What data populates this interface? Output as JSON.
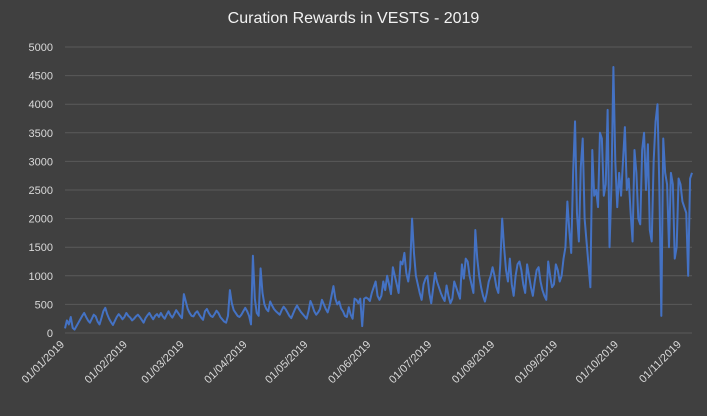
{
  "chart_data": {
    "type": "line",
    "title": "Curation Rewards in VESTS - 2019",
    "xlabel": "",
    "ylabel": "",
    "ylim": [
      0,
      5000
    ],
    "yticks": [
      "0",
      "500",
      "1000",
      "1500",
      "2000",
      "2500",
      "3000",
      "3500",
      "4000",
      "4500",
      "5000"
    ],
    "xticks": [
      "01/01/2019",
      "01/02/2019",
      "01/03/2019",
      "01/04/2019",
      "01/05/2019",
      "01/06/2019",
      "01/07/2019",
      "01/08/2019",
      "01/09/2019",
      "01/10/2019",
      "01/11/2019"
    ],
    "grid": true,
    "legend": "none",
    "line_color": "#4472c4",
    "x_start": "2019-01-01",
    "x_end": "2019-11-06",
    "series": [
      {
        "values": [
          80,
          220,
          150,
          280,
          90,
          60,
          120,
          180,
          240,
          300,
          350,
          280,
          220,
          180,
          250,
          320,
          290,
          200,
          150,
          260,
          380,
          440,
          330,
          250,
          190,
          140,
          210,
          280,
          330,
          290,
          240,
          280,
          350,
          300,
          270,
          220,
          250,
          290,
          320,
          280,
          230,
          180,
          260,
          310,
          350,
          290,
          240,
          300,
          330,
          280,
          350,
          290,
          250,
          320,
          380,
          310,
          270,
          330,
          400,
          350,
          300,
          260,
          680,
          550,
          420,
          350,
          300,
          290,
          350,
          380,
          320,
          270,
          230,
          380,
          420,
          350,
          300,
          280,
          330,
          390,
          350,
          280,
          240,
          200,
          180,
          300,
          750,
          520,
          400,
          350,
          300,
          280,
          320,
          380,
          440,
          380,
          300,
          150,
          1350,
          600,
          350,
          300,
          1130,
          700,
          500,
          420,
          380,
          550,
          480,
          420,
          380,
          350,
          320,
          400,
          460,
          420,
          360,
          300,
          260,
          340,
          420,
          480,
          420,
          370,
          330,
          290,
          250,
          380,
          560,
          480,
          380,
          320,
          360,
          420,
          580,
          500,
          420,
          360,
          480,
          650,
          820,
          600,
          500,
          550,
          430,
          380,
          300,
          280,
          450,
          320,
          250,
          600,
          580,
          520,
          600,
          120,
          600,
          620,
          600,
          560,
          700,
          800,
          900,
          650,
          580,
          650,
          900,
          750,
          1000,
          850,
          680,
          1150,
          1000,
          850,
          700,
          1250,
          1200,
          1400,
          1050,
          900,
          1150,
          2000,
          1400,
          1000,
          850,
          700,
          580,
          850,
          950,
          1000,
          700,
          520,
          780,
          1050,
          900,
          800,
          700,
          620,
          560,
          830,
          650,
          520,
          600,
          900,
          800,
          700,
          600,
          1200,
          950,
          1300,
          1250,
          1000,
          850,
          700,
          1800,
          1300,
          1000,
          800,
          650,
          550,
          700,
          900,
          1000,
          1150,
          1000,
          800,
          700,
          1200,
          2000,
          1500,
          1100,
          900,
          1300,
          850,
          650,
          1000,
          1200,
          1250,
          1100,
          850,
          700,
          1200,
          1000,
          800,
          650,
          900,
          1100,
          1150,
          900,
          750,
          650,
          580,
          1250,
          1000,
          800,
          850,
          1200,
          1100,
          900,
          1000,
          1300,
          1500,
          2300,
          1800,
          1400,
          2800,
          3700,
          2100,
          1600,
          2900,
          3400,
          2000,
          1600,
          1200,
          800,
          3200,
          2400,
          2500,
          2200,
          3500,
          3400,
          2400,
          2600,
          3900,
          1500,
          2600,
          4650,
          3000,
          2200,
          2800,
          2400,
          3000,
          3600,
          2500,
          2700,
          2100,
          1600,
          3200,
          2800,
          2000,
          1900,
          3200,
          3500,
          2500,
          3300,
          1800,
          1600,
          3000,
          3700,
          4000,
          2500,
          300,
          3400,
          2800,
          2600,
          1500,
          2800,
          2600,
          1300,
          1500,
          2700,
          2600,
          2300,
          2200,
          2100,
          1000,
          2700,
          2800
        ]
      }
    ]
  }
}
